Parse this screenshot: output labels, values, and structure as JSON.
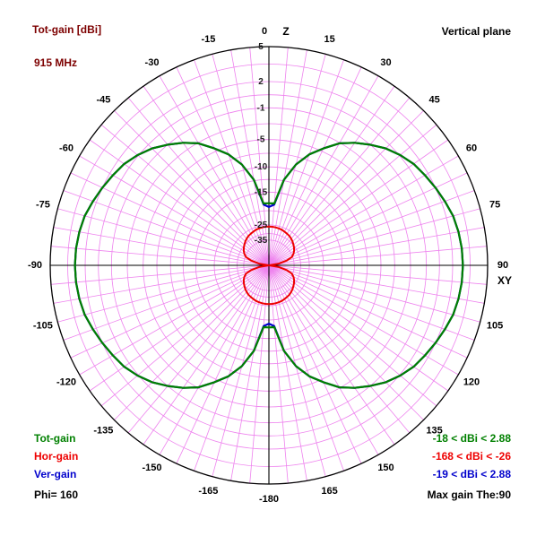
{
  "header": {
    "title": "Tot-gain [dBi]",
    "frequency": "915 MHz",
    "plane": "Vertical plane"
  },
  "legend": {
    "series": [
      {
        "label": "Tot-gain",
        "range": "-18 < dBi < 2.88"
      },
      {
        "label": "Hor-gain",
        "range": "-168 < dBi < -26"
      },
      {
        "label": "Ver-gain",
        "range": "-19 < dBi < 2.88"
      }
    ],
    "phi": "Phi= 160",
    "max_gain": "Max gain The:90"
  },
  "chart_data": {
    "type": "polar-radiation-pattern",
    "title": "Tot-gain [dBi]",
    "frequency": "915 MHz",
    "plane": "Vertical plane",
    "phi_deg": 160,
    "max_gain_theta_deg": 90,
    "axis_top": "Z",
    "axis_right": "XY",
    "angle_step_deg": 5,
    "angle_labels": [
      "0",
      "15",
      "30",
      "45",
      "60",
      "75",
      "90",
      "105",
      "120",
      "135",
      "150",
      "165",
      "-180",
      "-165",
      "-150",
      "-135",
      "-120",
      "-105",
      "-90",
      "-75",
      "-60",
      "-45",
      "-30",
      "-15"
    ],
    "ring_labels": [
      {
        "db": 5,
        "text": "5"
      },
      {
        "db": 2,
        "text": "2"
      },
      {
        "db": -1,
        "text": "-1"
      },
      {
        "db": -5,
        "text": "-5"
      },
      {
        "db": -10,
        "text": "-10"
      },
      {
        "db": -15,
        "text": "-15"
      },
      {
        "db": -25,
        "text": "-25"
      },
      {
        "db": -35,
        "text": "-35"
      }
    ],
    "rings_dB": [
      5,
      3.5,
      2,
      0.5,
      -1,
      -3,
      -5,
      -7.5,
      -10,
      -12.5,
      -15,
      -20,
      -25,
      -30,
      -35
    ],
    "scale_points": [
      [
        5,
        1
      ],
      [
        2,
        0.84
      ],
      [
        -1,
        0.72
      ],
      [
        -5,
        0.575
      ],
      [
        -10,
        0.45
      ],
      [
        -15,
        0.335
      ],
      [
        -20,
        0.25
      ],
      [
        -25,
        0.185
      ],
      [
        -30,
        0.145
      ],
      [
        -35,
        0.115
      ],
      [
        -40,
        0.06
      ],
      [
        -45,
        0
      ]
    ],
    "colors": {
      "tot": "#008000",
      "hor": "#ee0000",
      "ver": "#0000cc",
      "grid": "#ee82ee",
      "title": "#7d0000",
      "axis": "#000000"
    },
    "series": [
      {
        "name": "Tot-gain",
        "color": "#008000",
        "min_dBi": -18,
        "max_dBi": 2.88,
        "theta_step_deg": 5,
        "gain_dBi": [
          -18,
          -18,
          -12.3,
          -8.9,
          -6.4,
          -4.6,
          -3.1,
          -2,
          -1,
          -0.1,
          0.6,
          1.2,
          1.6,
          2,
          2.3,
          2.6,
          2.75,
          2.85,
          2.88,
          2.85,
          2.75,
          2.6,
          2.3,
          2,
          1.6,
          1.2,
          0.6,
          -0.1,
          -1,
          -2,
          -3.1,
          -4.6,
          -6.4,
          -8.9,
          -12.3,
          -18,
          -18
        ]
      },
      {
        "name": "Hor-gain",
        "color": "#ee0000",
        "min_dBi": -168,
        "max_dBi": -26,
        "theta_step_deg": 5,
        "gain_dBi": [
          -26,
          -26,
          -26.1,
          -26.3,
          -26.5,
          -26.9,
          -27.3,
          -27.7,
          -28.3,
          -29,
          -29.8,
          -30.8,
          -32,
          -33.5,
          -35.3,
          -37.7,
          -41.2,
          -45,
          -45,
          -45,
          -41.2,
          -37.7,
          -35.3,
          -33.5,
          -32,
          -30.8,
          -29.8,
          -29,
          -28.3,
          -27.7,
          -27.3,
          -26.9,
          -26.5,
          -26.3,
          -26.1,
          -26,
          -26
        ]
      },
      {
        "name": "Ver-gain",
        "color": "#0000cc",
        "min_dBi": -19,
        "max_dBi": 2.88,
        "theta_step_deg": 5,
        "gain_dBi": [
          -19,
          -18.3,
          -12.3,
          -8.9,
          -6.4,
          -4.6,
          -3.1,
          -2,
          -1,
          -0.1,
          0.6,
          1.2,
          1.6,
          2,
          2.3,
          2.6,
          2.75,
          2.85,
          2.88,
          2.85,
          2.75,
          2.6,
          2.3,
          2,
          1.6,
          1.2,
          0.6,
          -0.1,
          -1,
          -2,
          -3.1,
          -4.6,
          -6.4,
          -8.9,
          -12.3,
          -18.3,
          -19
        ]
      }
    ]
  }
}
